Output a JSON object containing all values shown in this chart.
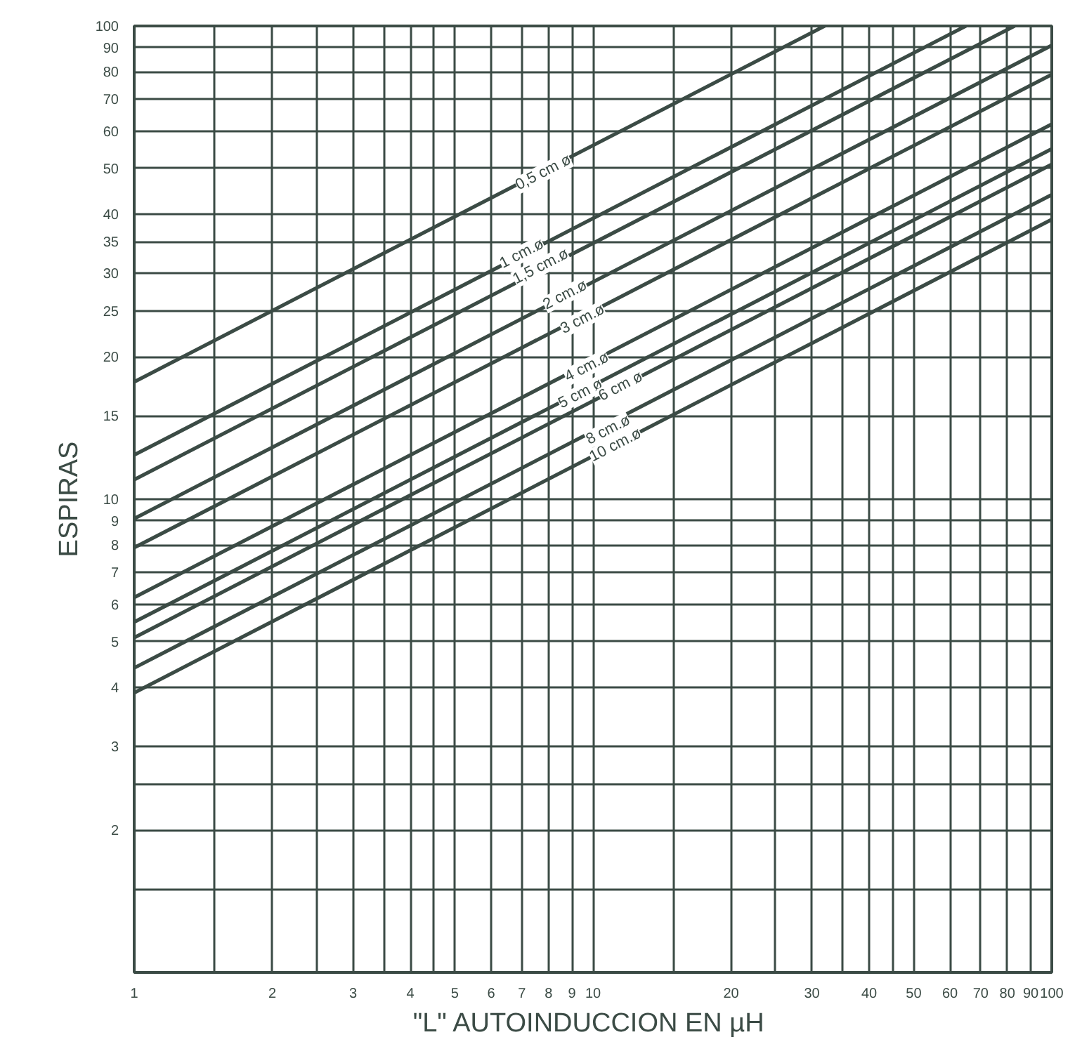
{
  "chart_data": {
    "type": "line",
    "xlabel": "\"L\"  AUTOINDUCCION EN µH",
    "ylabel": "ESPIRAS",
    "log": "xy",
    "grid": true,
    "marker": "none",
    "line_style": "solid",
    "xlim": [
      1,
      100
    ],
    "ylim": [
      1,
      100
    ],
    "xticks": [
      1,
      {
        "value": 1.5,
        "label": null
      },
      2,
      {
        "value": 2.5,
        "label": null
      },
      3,
      {
        "value": 3.5,
        "label": null
      },
      4,
      {
        "value": 4.5,
        "label": null
      },
      5,
      6,
      7,
      8,
      9,
      10,
      {
        "value": 15,
        "label": null
      },
      20,
      {
        "value": 25,
        "label": null
      },
      30,
      {
        "value": 35,
        "label": null
      },
      40,
      {
        "value": 45,
        "label": null
      },
      50,
      60,
      70,
      80,
      90,
      100
    ],
    "yticks": [
      {
        "value": 1.5,
        "label": null
      },
      2,
      {
        "value": 2.5,
        "label": null
      },
      3,
      4,
      5,
      6,
      7,
      8,
      9,
      10,
      15,
      20,
      25,
      30,
      35,
      40,
      50,
      60,
      70,
      80,
      90,
      100
    ],
    "series": [
      {
        "color": "#3b4b45",
        "x": [
          1,
          32
        ],
        "values": [
          17.7,
          100
        ]
      },
      {
        "color": "#3b4b45",
        "x": [
          1,
          65
        ],
        "values": [
          12.4,
          100
        ]
      },
      {
        "color": "#3b4b45",
        "x": [
          1,
          83
        ],
        "values": [
          11,
          100
        ]
      },
      {
        "color": "#3b4b45",
        "x": [
          1,
          100
        ],
        "values": [
          9.1,
          91
        ]
      },
      {
        "color": "#3b4b45",
        "x": [
          1,
          100
        ],
        "values": [
          7.9,
          79
        ]
      },
      {
        "color": "#3b4b45",
        "x": [
          1,
          100
        ],
        "values": [
          6.2,
          62
        ]
      },
      {
        "color": "#3b4b45",
        "x": [
          1,
          100
        ],
        "values": [
          5.5,
          55
        ]
      },
      {
        "color": "#3b4b45",
        "x": [
          1,
          100
        ],
        "values": [
          5.1,
          51
        ]
      },
      {
        "color": "#3b4b45",
        "x": [
          1,
          100
        ],
        "values": [
          4.4,
          44
        ]
      },
      {
        "color": "#3b4b45",
        "x": [
          1,
          100
        ],
        "values": [
          3.9,
          39
        ]
      }
    ],
    "annotations": [
      {
        "text": "0,5 cm ø",
        "x": 7.8,
        "y": 49
      },
      {
        "text": "1 cm.ø",
        "x": 7,
        "y": 33
      },
      {
        "text": "1,5 cm.ø",
        "x": 7.7,
        "y": 31
      },
      {
        "text": "2 cm.ø",
        "x": 8.7,
        "y": 27
      },
      {
        "text": "3 cm.ø",
        "x": 9.5,
        "y": 24
      },
      {
        "text": "4 cm.ø",
        "x": 9.7,
        "y": 19
      },
      {
        "text": "5 cm ø",
        "x": 9.4,
        "y": 16.7
      },
      {
        "text": "6 cm ø",
        "x": 11.5,
        "y": 17.3
      },
      {
        "text": "8 cm.ø",
        "x": 10.8,
        "y": 14
      },
      {
        "text": "10 cm.ø",
        "x": 11.2,
        "y": 13
      }
    ]
  }
}
